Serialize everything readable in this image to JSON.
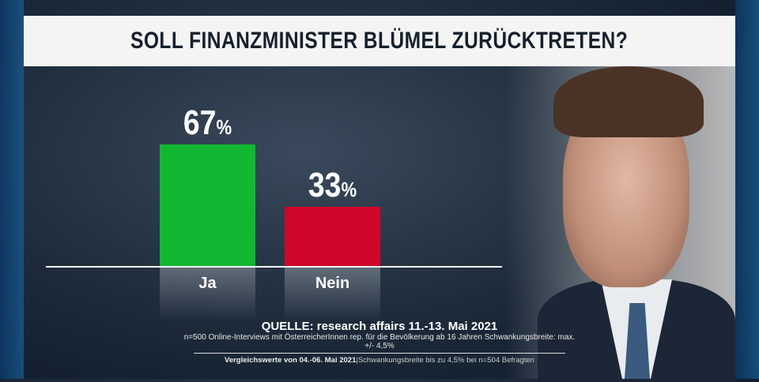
{
  "title": "SOLL FINANZMINISTER BLÜMEL ZURÜCKTRETEN?",
  "chart_data": {
    "type": "bar",
    "title": "SOLL FINANZMINISTER BLÜMEL ZURÜCKTRETEN?",
    "categories": [
      "Ja",
      "Nein"
    ],
    "values": [
      67,
      33
    ],
    "value_labels": [
      "67",
      "33"
    ],
    "unit": "%",
    "colors": [
      "#12b832",
      "#d0062c"
    ],
    "ylim": [
      0,
      100
    ],
    "grid": false
  },
  "source": {
    "line1": "QUELLE: research affairs 11.-13. Mai 2021",
    "line2": "n=500 Online-Interviews mit ÖsterreicherInnen rep. für die Bevölkerung ab 16 Jahren  Schwankungsbreite: max. +/- 4,5%",
    "line3_bold": "Vergleichswerte von  04.-06. Mai 2021",
    "line3": "|Schwankungsbreite bis zu 4,5% bei n=504 Befragten"
  }
}
